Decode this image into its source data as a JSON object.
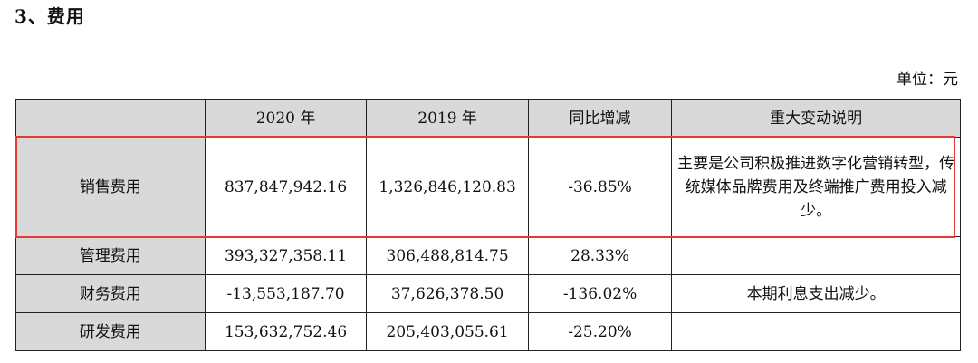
{
  "section": {
    "title": "3、费用"
  },
  "unit": {
    "text": "单位：元"
  },
  "table": {
    "headers": [
      "",
      "2020 年",
      "2019 年",
      "同比增减",
      "重大变动说明"
    ],
    "rows": [
      {
        "label": "销售费用",
        "y2020": "837,847,942.16",
        "y2019": "1,326,846,120.83",
        "change": "-36.85%",
        "note": "主要是公司积极推进数字化营销转型，传统媒体品牌费用及终端推广费用投入减少。"
      },
      {
        "label": "管理费用",
        "y2020": "393,327,358.11",
        "y2019": "306,488,814.75",
        "change": "28.33%",
        "note": ""
      },
      {
        "label": "财务费用",
        "y2020": "-13,553,187.70",
        "y2019": "37,626,378.50",
        "change": "-136.02%",
        "note": "本期利息支出减少。"
      },
      {
        "label": "研发费用",
        "y2020": "153,632,752.46",
        "y2019": "205,403,055.61",
        "change": "-25.20%",
        "note": ""
      }
    ]
  },
  "colors": {
    "header_fill": "#d9d9d9",
    "highlight": "#e53935",
    "border": "#222222"
  }
}
